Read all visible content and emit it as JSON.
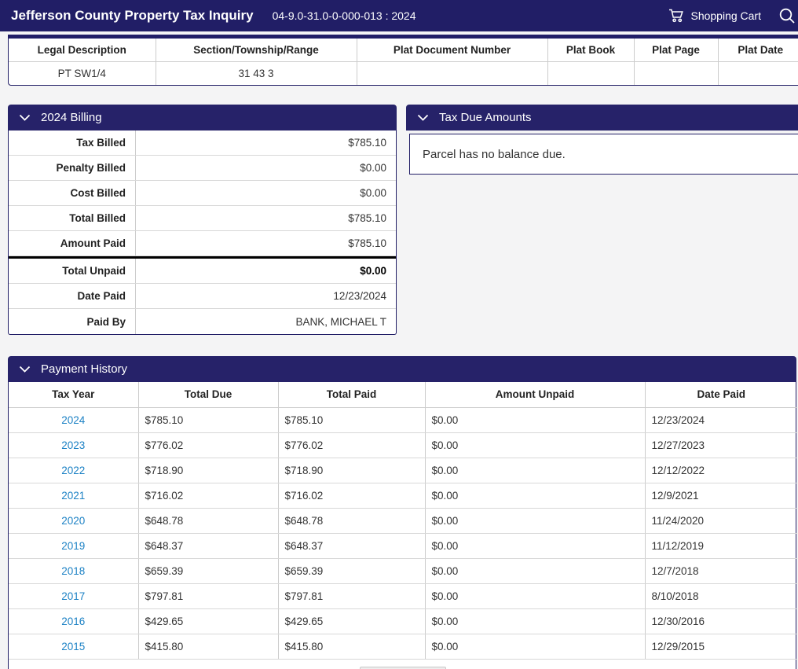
{
  "colors": {
    "navy": "#211e66",
    "panel_navy": "#262269",
    "link_blue": "#1d82c5"
  },
  "header": {
    "title": "Jefferson County Property Tax Inquiry",
    "parcel": "04-9.0-31.0-0-000-013 : 2024",
    "cart_label": "Shopping Cart"
  },
  "legal_table": {
    "columns": [
      "Legal Description",
      "Section/Township/Range",
      "Plat Document Number",
      "Plat Book",
      "Plat Page",
      "Plat Date"
    ],
    "rows": [
      [
        "PT SW1/4",
        "31 43 3",
        "",
        "",
        "",
        ""
      ]
    ]
  },
  "billing": {
    "title": "2024 Billing",
    "rows": [
      {
        "label": "Tax Billed",
        "value": "$785.10"
      },
      {
        "label": "Penalty Billed",
        "value": "$0.00"
      },
      {
        "label": "Cost Billed",
        "value": "$0.00"
      },
      {
        "label": "Total Billed",
        "value": "$785.10"
      },
      {
        "label": "Amount Paid",
        "value": "$785.10"
      },
      {
        "label": "Total Unpaid",
        "value": "$0.00",
        "emphasis": true,
        "divider_before": true
      },
      {
        "label": "Date Paid",
        "value": "12/23/2024"
      },
      {
        "label": "Paid By",
        "value": "BANK, MICHAEL T"
      }
    ]
  },
  "tax_due": {
    "title": "Tax Due Amounts",
    "message": "Parcel has no balance due."
  },
  "payment_history": {
    "title": "Payment History",
    "columns": [
      "Tax Year",
      "Total Due",
      "Total Paid",
      "Amount Unpaid",
      "Date Paid"
    ],
    "rows": [
      [
        "2024",
        "$785.10",
        "$785.10",
        "$0.00",
        "12/23/2024"
      ],
      [
        "2023",
        "$776.02",
        "$776.02",
        "$0.00",
        "12/27/2023"
      ],
      [
        "2022",
        "$718.90",
        "$718.90",
        "$0.00",
        "12/12/2022"
      ],
      [
        "2021",
        "$716.02",
        "$716.02",
        "$0.00",
        "12/9/2021"
      ],
      [
        "2020",
        "$648.78",
        "$648.78",
        "$0.00",
        "11/24/2020"
      ],
      [
        "2019",
        "$648.37",
        "$648.37",
        "$0.00",
        "11/12/2019"
      ],
      [
        "2018",
        "$659.39",
        "$659.39",
        "$0.00",
        "12/7/2018"
      ],
      [
        "2017",
        "$797.81",
        "$797.81",
        "$0.00",
        "8/10/2018"
      ],
      [
        "2016",
        "$429.65",
        "$429.65",
        "$0.00",
        "12/30/2016"
      ],
      [
        "2015",
        "$415.80",
        "$415.80",
        "$0.00",
        "12/29/2015"
      ]
    ]
  }
}
